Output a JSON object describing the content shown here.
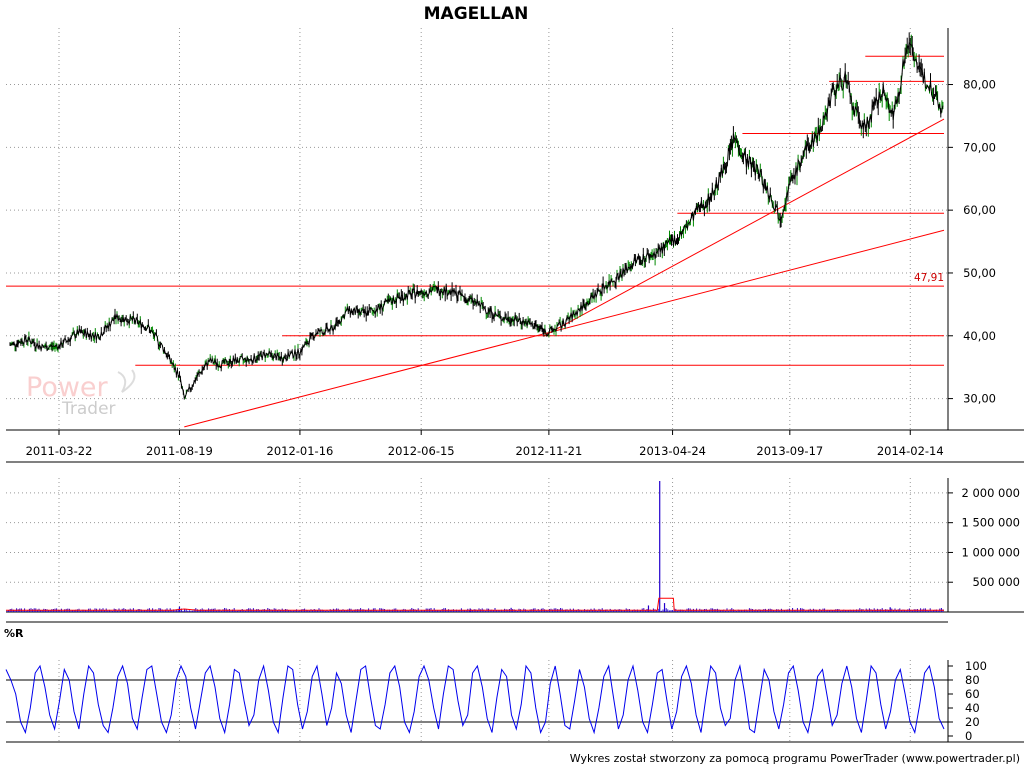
{
  "title": "MAGELLAN",
  "footer": "Wykres został stworzony za pomocą programu PowerTrader (www.powertrader.pl)",
  "watermark": {
    "line1": "Power",
    "line2": "Trader"
  },
  "colors": {
    "price": "#000000",
    "price_up": "#008800",
    "support": "#ff0000",
    "volume": "#2200cc",
    "volume_avg": "#ff0000",
    "wr": "#0000ee",
    "grid": "#999999"
  },
  "chart_data": [
    {
      "type": "line",
      "name": "price",
      "title": "MAGELLAN",
      "x_ticks": [
        "2011-03-22",
        "2011-08-19",
        "2012-01-16",
        "2012-06-15",
        "2012-11-21",
        "2013-04-24",
        "2013-09-17",
        "2014-02-14"
      ],
      "y_ticks": [
        "30,00",
        "40,00",
        "50,00",
        "60,00",
        "70,00",
        "80,00"
      ],
      "ylim": [
        25,
        89
      ],
      "grid": true,
      "level_label": "47,91",
      "x": [
        "2011-01-20",
        "2011-02-10",
        "2011-03-01",
        "2011-03-22",
        "2011-04-15",
        "2011-05-10",
        "2011-06-01",
        "2011-06-20",
        "2011-07-10",
        "2011-07-30",
        "2011-08-10",
        "2011-08-19",
        "2011-08-25",
        "2011-09-10",
        "2011-09-25",
        "2011-10-10",
        "2011-10-25",
        "2011-11-15",
        "2011-12-05",
        "2011-12-25",
        "2012-01-16",
        "2012-02-05",
        "2012-02-25",
        "2012-03-15",
        "2012-04-05",
        "2012-04-25",
        "2012-05-15",
        "2012-06-15",
        "2012-07-10",
        "2012-08-01",
        "2012-08-25",
        "2012-09-20",
        "2012-10-15",
        "2012-11-05",
        "2012-11-21",
        "2012-12-10",
        "2013-01-05",
        "2013-01-30",
        "2013-02-20",
        "2013-03-10",
        "2013-04-01",
        "2013-04-24",
        "2013-05-10",
        "2013-05-25",
        "2013-06-10",
        "2013-06-25",
        "2013-07-10",
        "2013-07-25",
        "2013-08-10",
        "2013-08-25",
        "2013-09-05",
        "2013-09-17",
        "2013-10-05",
        "2013-10-25",
        "2013-11-10",
        "2013-11-25",
        "2013-12-05",
        "2013-12-20",
        "2014-01-10",
        "2014-01-25",
        "2014-02-05",
        "2014-02-14",
        "2014-02-25",
        "2014-03-10",
        "2014-03-20",
        "2014-03-28"
      ],
      "values": [
        38.5,
        39.5,
        38.2,
        38.4,
        40.5,
        40.0,
        43.0,
        42.5,
        41.5,
        38.0,
        35.5,
        33.5,
        30.0,
        33.5,
        36.0,
        35.5,
        36.0,
        36.2,
        37.0,
        36.5,
        37.5,
        40.5,
        41.0,
        44.0,
        43.5,
        44.5,
        46.0,
        47.0,
        47.5,
        46.5,
        45.0,
        43.0,
        42.5,
        41.5,
        40.5,
        42.0,
        45.0,
        48.0,
        50.0,
        52.0,
        53.0,
        55.0,
        57.0,
        60.0,
        62.0,
        66.0,
        71.5,
        68.0,
        66.0,
        62.0,
        59.0,
        64.0,
        69.0,
        73.0,
        79.0,
        81.0,
        76.0,
        73.0,
        79.0,
        75.0,
        83.0,
        87.5,
        82.0,
        80.0,
        78.0,
        75.0
      ],
      "supports": [
        {
          "type": "horizontal",
          "value": 47.91,
          "from": "2011-01-15",
          "to": "2014-03-28"
        },
        {
          "type": "horizontal",
          "value": 40.0,
          "from": "2011-12-25",
          "to": "2014-03-28"
        },
        {
          "type": "horizontal",
          "value": 35.3,
          "from": "2011-06-25",
          "to": "2014-03-28"
        },
        {
          "type": "horizontal",
          "value": 59.5,
          "from": "2013-04-30",
          "to": "2014-03-28"
        },
        {
          "type": "horizontal",
          "value": 72.2,
          "from": "2013-07-20",
          "to": "2014-03-28"
        },
        {
          "type": "horizontal",
          "value": 80.5,
          "from": "2013-11-05",
          "to": "2014-03-28"
        },
        {
          "type": "horizontal",
          "value": 84.5,
          "from": "2013-12-20",
          "to": "2014-03-28"
        },
        {
          "type": "trend",
          "from": [
            "2011-08-25",
            25.5
          ],
          "to": [
            "2014-03-28",
            56.8
          ]
        },
        {
          "type": "trend",
          "from": [
            "2012-11-15",
            40.0
          ],
          "to": [
            "2014-03-28",
            74.5
          ]
        }
      ]
    },
    {
      "type": "bar",
      "name": "volume",
      "y_ticks": [
        "500 000",
        "1 000 000",
        "1 500 000",
        "2 000 000"
      ],
      "ylim": [
        0,
        2250000
      ],
      "spikes": [
        {
          "x": "2011-08-19",
          "value": 90000
        },
        {
          "x": "2012-08-15",
          "value": 60000
        },
        {
          "x": "2012-10-05",
          "value": 70000
        },
        {
          "x": "2013-03-25",
          "value": 110000
        },
        {
          "x": "2013-04-08",
          "value": 2200000
        },
        {
          "x": "2013-04-14",
          "value": 150000
        },
        {
          "x": "2014-01-20",
          "value": 80000
        }
      ],
      "avg": [
        {
          "x": "2011-01-15",
          "value": 30000
        },
        {
          "x": "2011-08-10",
          "value": 30000
        },
        {
          "x": "2011-08-25",
          "value": 50000
        },
        {
          "x": "2011-09-10",
          "value": 30000
        },
        {
          "x": "2013-04-05",
          "value": 30000
        },
        {
          "x": "2013-04-07",
          "value": 230000
        },
        {
          "x": "2013-04-25",
          "value": 230000
        },
        {
          "x": "2013-04-26",
          "value": 30000
        },
        {
          "x": "2014-03-28",
          "value": 30000
        }
      ]
    },
    {
      "type": "line",
      "name": "williams-r",
      "title": "%R",
      "y_ticks": [
        "0",
        "20",
        "40",
        "60",
        "80",
        "100"
      ],
      "ylim": [
        0,
        100
      ],
      "levels": [
        20,
        80
      ],
      "values": [
        95,
        80,
        60,
        20,
        5,
        40,
        90,
        100,
        70,
        30,
        10,
        50,
        95,
        80,
        35,
        10,
        60,
        100,
        90,
        45,
        15,
        5,
        40,
        85,
        100,
        75,
        25,
        10,
        55,
        95,
        100,
        60,
        20,
        5,
        30,
        80,
        100,
        85,
        40,
        10,
        50,
        90,
        100,
        70,
        25,
        5,
        45,
        95,
        90,
        50,
        15,
        30,
        80,
        100,
        65,
        20,
        5,
        55,
        100,
        95,
        45,
        10,
        35,
        85,
        100,
        60,
        15,
        40,
        90,
        75,
        30,
        5,
        50,
        95,
        100,
        55,
        15,
        10,
        45,
        90,
        100,
        70,
        20,
        5,
        35,
        85,
        100,
        80,
        40,
        10,
        60,
        100,
        95,
        50,
        15,
        30,
        90,
        100,
        70,
        25,
        5,
        55,
        95,
        85,
        30,
        10,
        45,
        100,
        90,
        40,
        5,
        20,
        75,
        100,
        60,
        15,
        10,
        50,
        95,
        70,
        25,
        5,
        40,
        85,
        100,
        55,
        10,
        30,
        80,
        100,
        65,
        20,
        5,
        45,
        90,
        95,
        50,
        10,
        35,
        85,
        100,
        75,
        30,
        5,
        55,
        100,
        90,
        40,
        15,
        25,
        80,
        100,
        60,
        10,
        5,
        50,
        95,
        80,
        35,
        10,
        45,
        90,
        100,
        65,
        20,
        5,
        40,
        85,
        95,
        55,
        15,
        30,
        75,
        100,
        70,
        25,
        5,
        50,
        100,
        90,
        45,
        10,
        35,
        80,
        95,
        60,
        20,
        5,
        45,
        90,
        100,
        70,
        25,
        10
      ]
    }
  ]
}
